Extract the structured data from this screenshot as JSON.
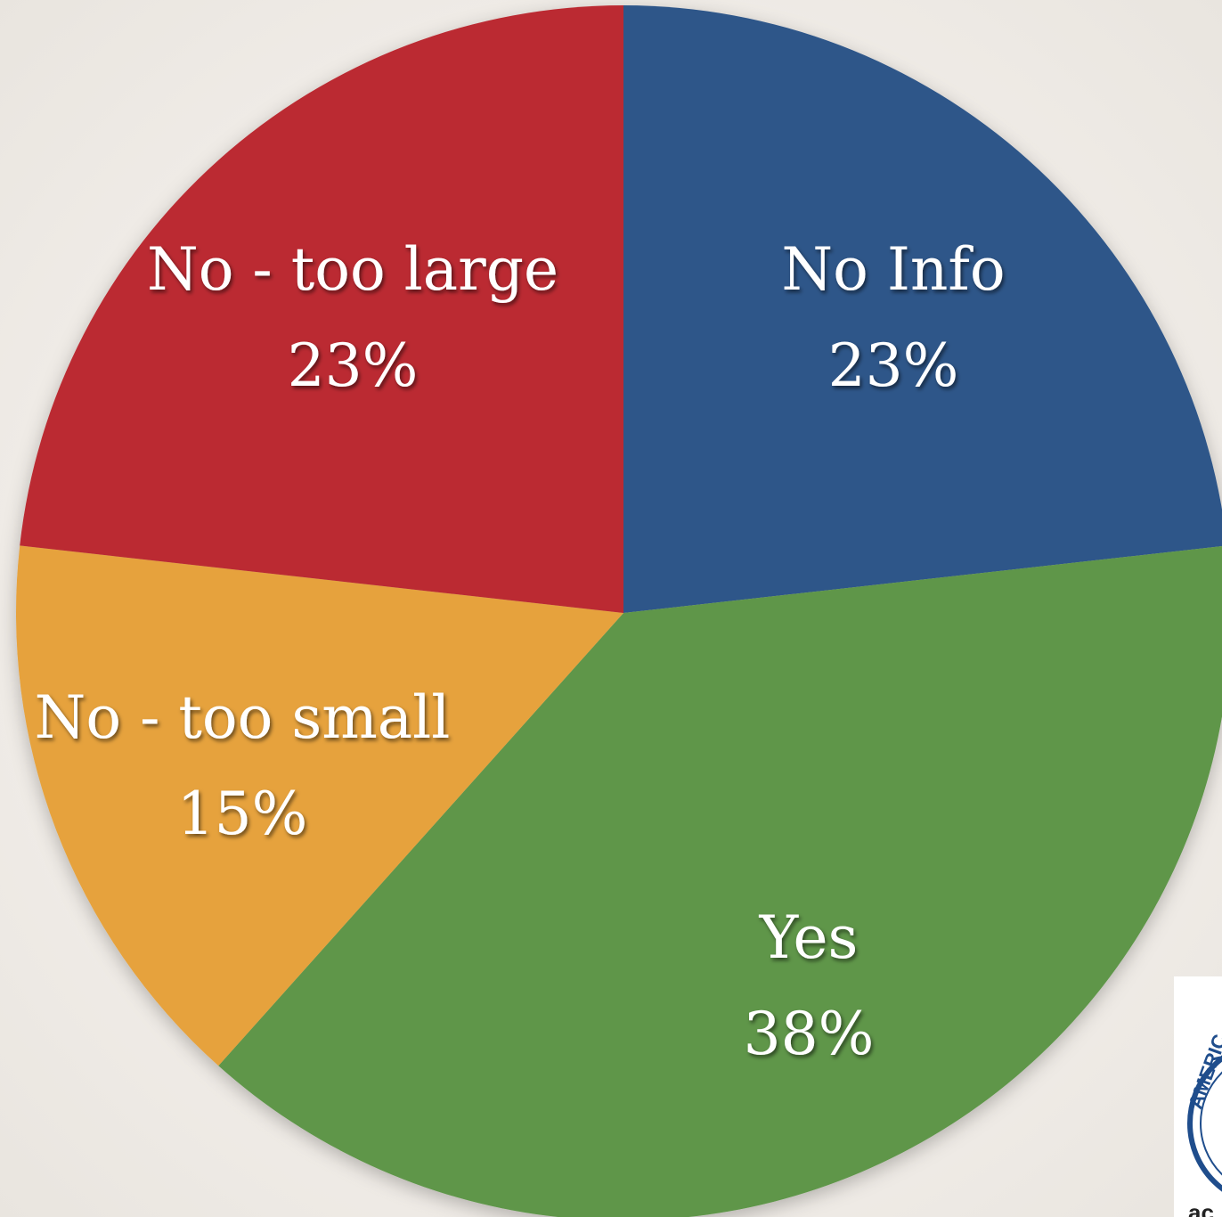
{
  "chart_data": {
    "type": "pie",
    "slices": [
      {
        "label": "No Info",
        "value": 23,
        "display": "23%",
        "color": "#2e5789"
      },
      {
        "label": "Yes",
        "value": 38,
        "display": "38%",
        "color": "#5e964a"
      },
      {
        "label": "No - too small",
        "value": 15,
        "display": "15%",
        "color": "#e6a23d"
      },
      {
        "label": "No - too large",
        "value": 23,
        "display": "23%",
        "color": "#bb2c31"
      }
    ],
    "start_angle": "12 o'clock",
    "direction": "clockwise",
    "legend": "none",
    "labels": "inside slices"
  },
  "logo": {
    "lettering": "AMERIC",
    "partial_word": "ac"
  }
}
